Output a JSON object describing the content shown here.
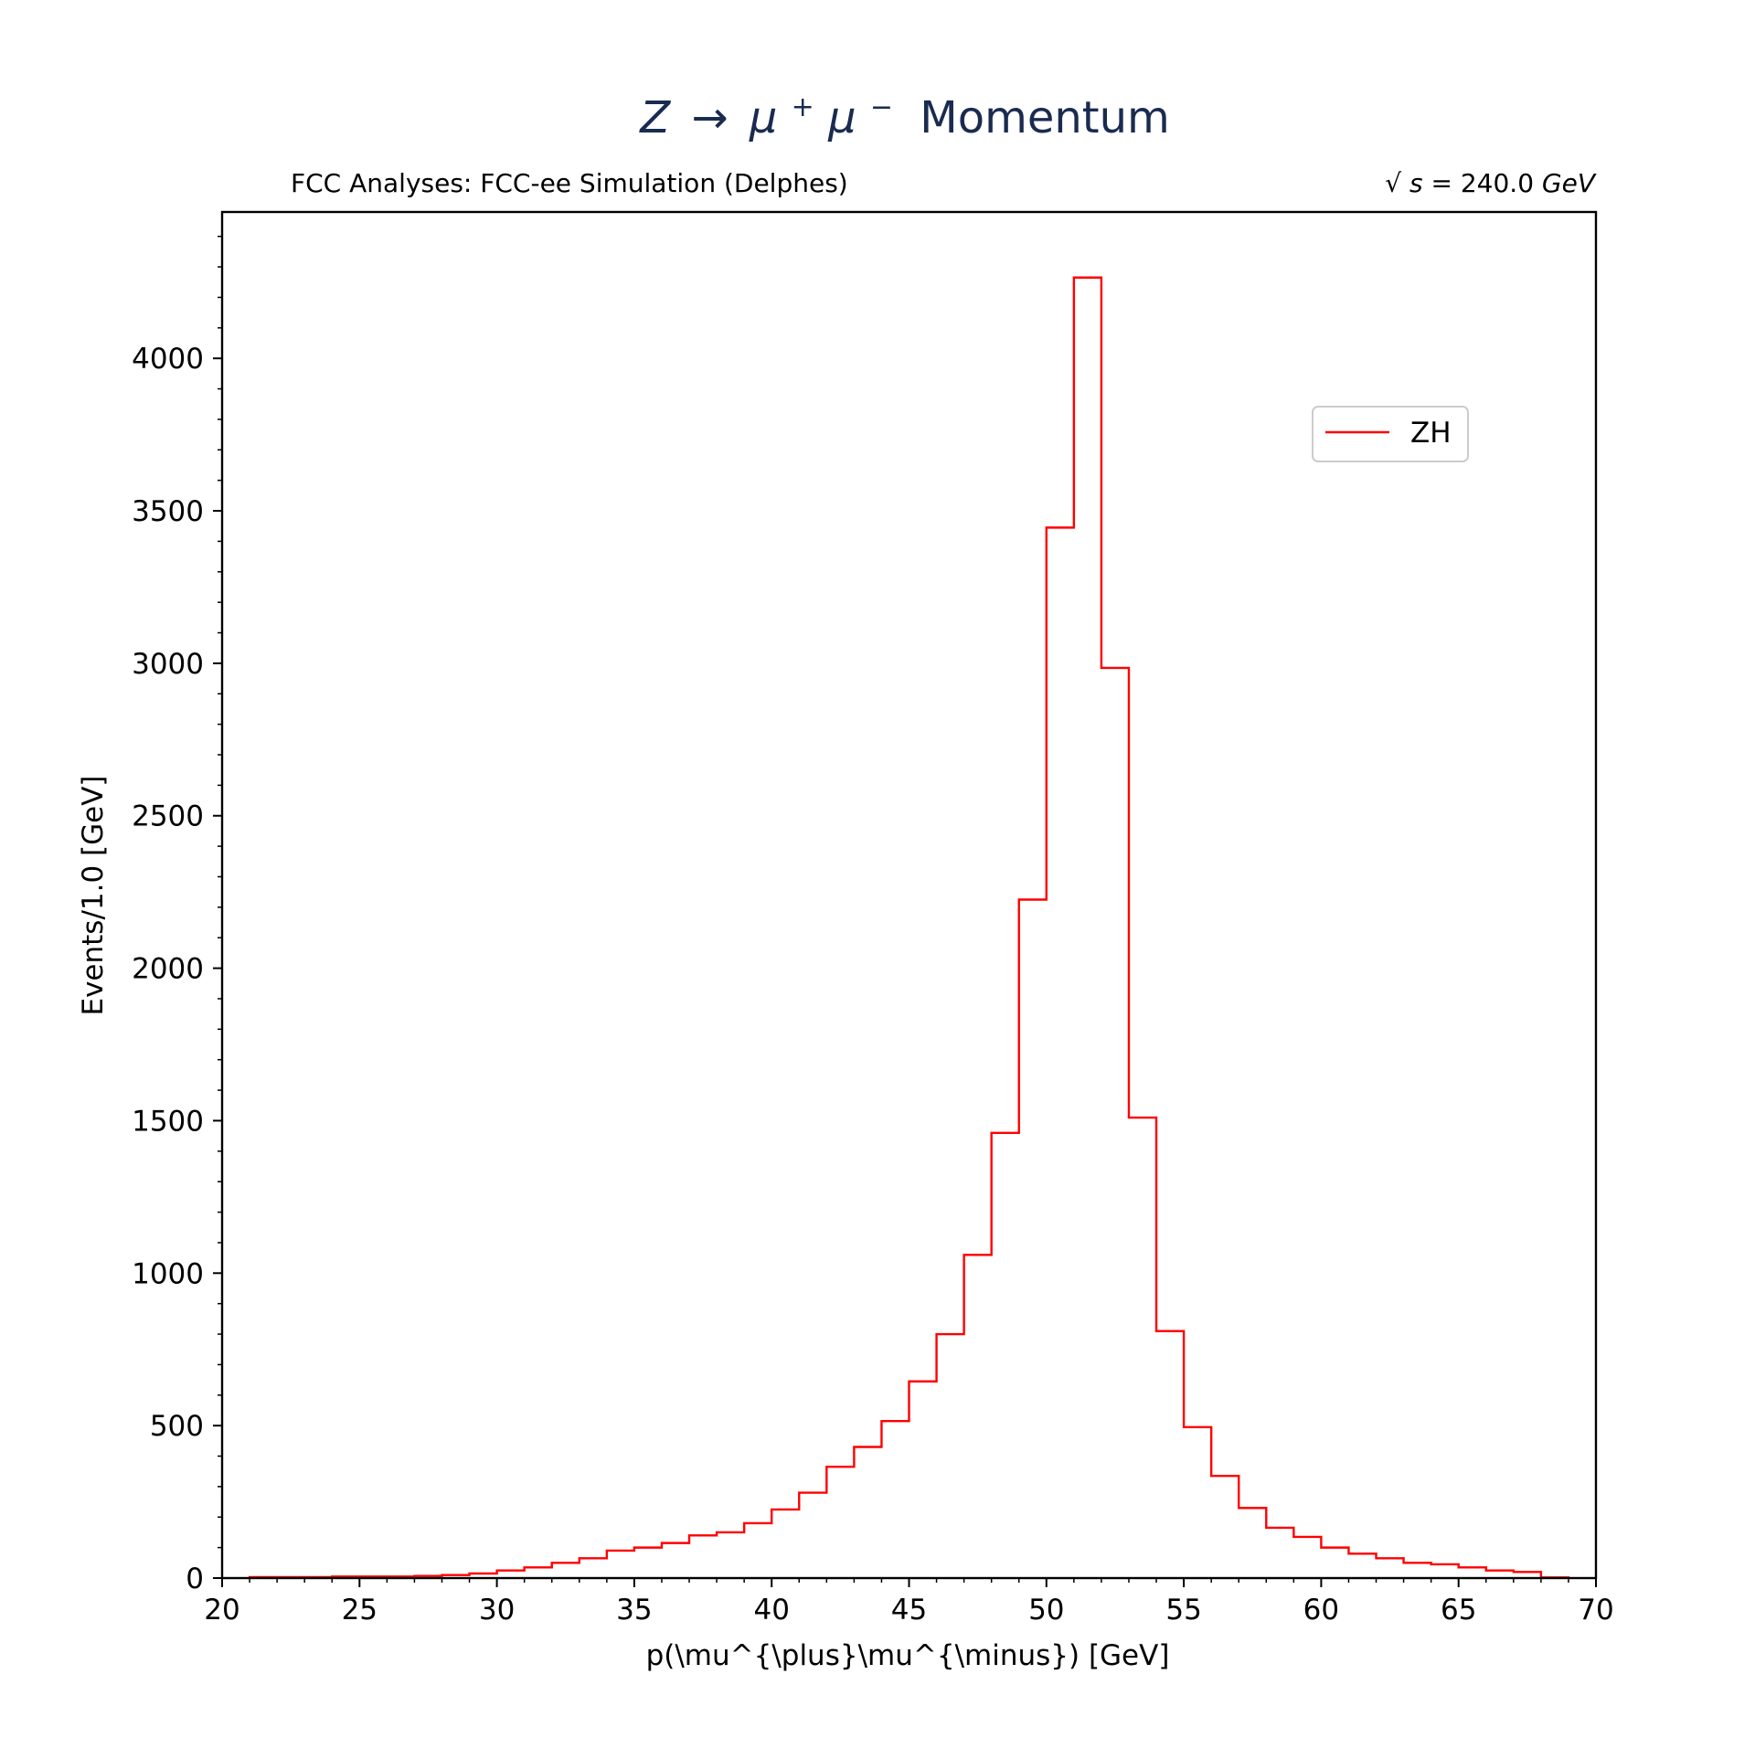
{
  "title": {
    "prefix": "Z",
    "arrow": "→",
    "mu": "μ",
    "plus": "+",
    "minus": "−",
    "suffix": "Momentum"
  },
  "subtitle_left": "FCC Analyses: FCC-ee Simulation (Delphes)",
  "subtitle_right": {
    "sqrt": "√",
    "s": "s",
    "eq": " = 240.0",
    "unit": "GeV"
  },
  "colors": {
    "series": "#ff0000",
    "title": "#1a2b50",
    "axes": "#000000"
  },
  "chart_data": {
    "type": "histogram",
    "xlabel": "p(\\mu^{\\plus}\\mu^{\\minus}) [GeV]",
    "ylabel": "Events/1.0 [GeV]",
    "xlim": [
      20,
      70
    ],
    "ylim": [
      0,
      4480
    ],
    "xticks": [
      20,
      25,
      30,
      35,
      40,
      45,
      50,
      55,
      60,
      65,
      70
    ],
    "yticks": [
      0,
      500,
      1000,
      1500,
      2000,
      2500,
      3000,
      3500,
      4000
    ],
    "legend_position": "upper-right",
    "bin_width": 1.0,
    "series": [
      {
        "name": "ZH",
        "color": "#ff0000",
        "bin_edges": [
          21,
          22,
          23,
          24,
          25,
          26,
          27,
          28,
          29,
          30,
          31,
          32,
          33,
          34,
          35,
          36,
          37,
          38,
          39,
          40,
          41,
          42,
          43,
          44,
          45,
          46,
          47,
          48,
          49,
          50,
          51,
          52,
          53,
          54,
          55,
          56,
          57,
          58,
          59,
          60,
          61,
          62,
          63,
          64,
          65,
          66,
          67,
          68,
          69
        ],
        "values": [
          3,
          3,
          3,
          5,
          5,
          5,
          7,
          10,
          15,
          25,
          35,
          50,
          65,
          90,
          100,
          115,
          140,
          150,
          180,
          225,
          280,
          365,
          430,
          515,
          645,
          800,
          1060,
          1460,
          2225,
          3445,
          4265,
          2985,
          1510,
          810,
          495,
          335,
          230,
          165,
          135,
          100,
          80,
          65,
          50,
          45,
          35,
          25,
          20,
          2
        ]
      }
    ]
  }
}
